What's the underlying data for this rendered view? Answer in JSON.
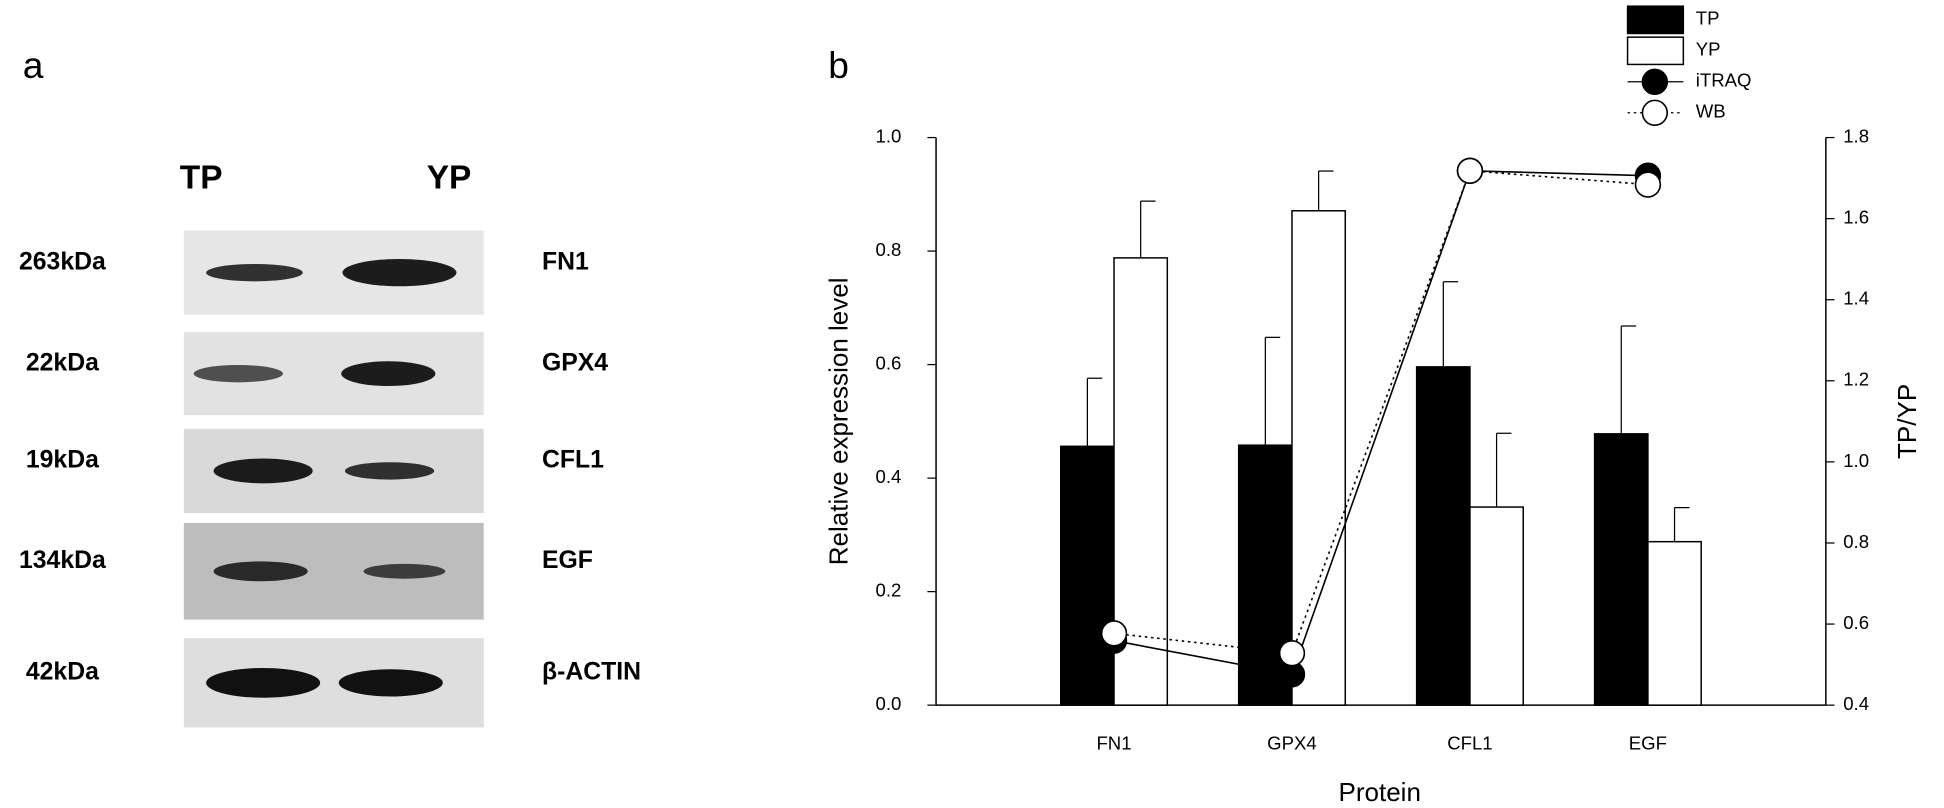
{
  "panel_a": {
    "label": "a",
    "lanes": [
      "TP",
      "YP"
    ],
    "rows": [
      {
        "size": "263kDa",
        "protein": "FN1"
      },
      {
        "size": "22kDa",
        "protein": "GPX4"
      },
      {
        "size": "19kDa",
        "protein": "CFL1"
      },
      {
        "size": "134kDa",
        "protein": "EGF"
      },
      {
        "size": "42kDa",
        "protein": "β-ACTIN"
      }
    ]
  },
  "chart_data": {
    "type": "bar",
    "panel_label": "b",
    "x_label": "Protein",
    "y_label": "Relative expression level",
    "y2_label": "TP/YP",
    "categories": [
      "FN1",
      "GPX4",
      "CFL1",
      "EGF"
    ],
    "series": [
      {
        "name": "TP",
        "type": "bar",
        "color": "#000000",
        "values": [
          0.456,
          0.458,
          0.596,
          0.478
        ],
        "errors": [
          0.12,
          0.19,
          0.15,
          0.19
        ]
      },
      {
        "name": "YP",
        "type": "bar",
        "color": "#ffffff",
        "values": [
          0.788,
          0.871,
          0.349,
          0.288
        ],
        "errors": [
          0.1,
          0.07,
          0.13,
          0.06
        ]
      },
      {
        "name": "iTRAQ",
        "type": "line",
        "axis": "y2",
        "color": "#000000",
        "line_style": "solid",
        "values": [
          0.559,
          0.476,
          1.718,
          1.706
        ]
      },
      {
        "name": "WB",
        "type": "line",
        "axis": "y2",
        "color": "#ffffff",
        "line_style": "dotted",
        "values": [
          0.577,
          0.528,
          1.718,
          1.684
        ]
      }
    ],
    "ylim": [
      0,
      1
    ],
    "yticks": [
      {
        "value": 0,
        "label": "0.0"
      },
      0.2,
      0.4,
      0.6,
      0.8,
      {
        "value": 1,
        "label": "1.0"
      }
    ],
    "y2lim": [
      0.4,
      1.8
    ],
    "y2ticks": [
      0.4,
      0.6,
      0.8,
      {
        "value": 1,
        "label": "1.0"
      },
      1.2,
      1.4,
      1.6,
      1.8
    ],
    "legend": "top-right"
  }
}
